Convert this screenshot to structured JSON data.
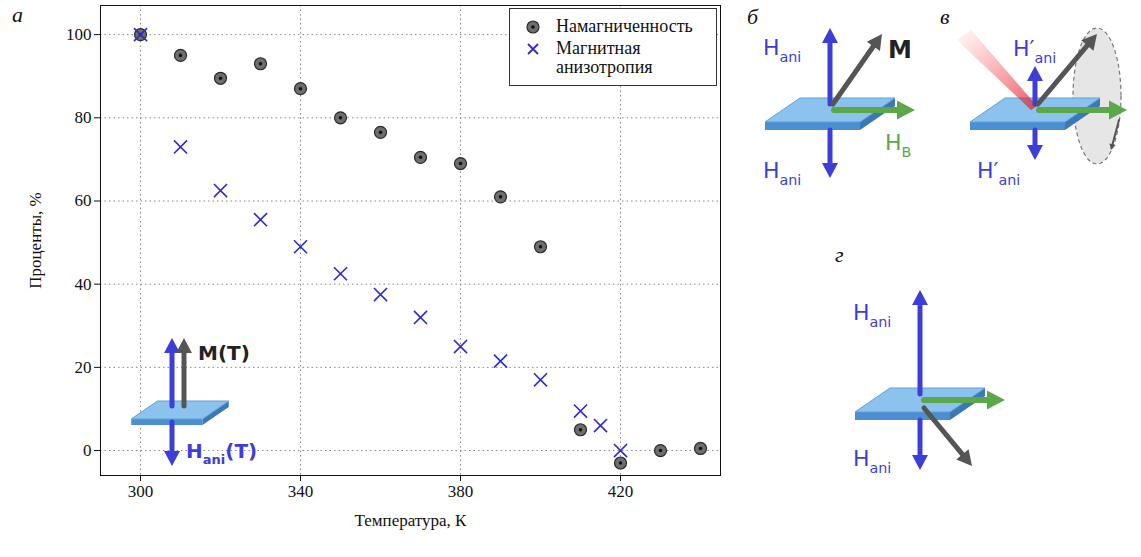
{
  "chart_data": {
    "type": "scatter",
    "panel_label": "а",
    "x_label": "Температура, К",
    "y_label": "Проценты, %",
    "xlim": [
      290,
      445
    ],
    "ylim": [
      -6,
      107
    ],
    "xticks": [
      300,
      340,
      380,
      420
    ],
    "yticks": [
      0,
      20,
      40,
      60,
      80,
      100
    ],
    "grid": true,
    "legend": "top-right",
    "series": [
      {
        "name": "Намагниченность",
        "color": "#6e6e6e",
        "marker": "circle",
        "x": [
          300,
          310,
          320,
          330,
          340,
          350,
          360,
          370,
          380,
          390,
          400,
          410,
          420,
          430,
          440
        ],
        "values": [
          100,
          95,
          89.5,
          93,
          87,
          80,
          76.5,
          70.5,
          69,
          61,
          49,
          5,
          -3,
          0,
          0.5
        ]
      },
      {
        "name": "Магнитная анизотропия",
        "color": "#2a2ad6",
        "marker": "x",
        "x": [
          300,
          310,
          320,
          330,
          340,
          350,
          360,
          370,
          380,
          390,
          400,
          410,
          415,
          420
        ],
        "values": [
          100,
          73,
          62.5,
          55.5,
          49,
          42.5,
          37.5,
          32,
          25,
          21.5,
          17,
          9.5,
          6,
          0
        ]
      }
    ],
    "annotations": [
      {
        "base": "M",
        "suffix": "(T)"
      },
      {
        "base": "H",
        "sub": "ani",
        "suffix": "(T)"
      }
    ]
  },
  "diagrams": [
    {
      "label": "б",
      "field_up": {
        "base": "H",
        "sub": "ani"
      },
      "field_down": {
        "base": "H",
        "sub": "ani"
      },
      "magnetization": {
        "base": "M"
      },
      "bias_field": {
        "base": "H",
        "sub": "B"
      }
    },
    {
      "label": "в",
      "field_up": {
        "base": "H′",
        "sub": "ani"
      },
      "field_down": {
        "base": "H′",
        "sub": "ani"
      }
    },
    {
      "label": "г",
      "field_up": {
        "base": "H",
        "sub": "ani"
      },
      "field_down": {
        "base": "H",
        "sub": "ani"
      }
    }
  ]
}
